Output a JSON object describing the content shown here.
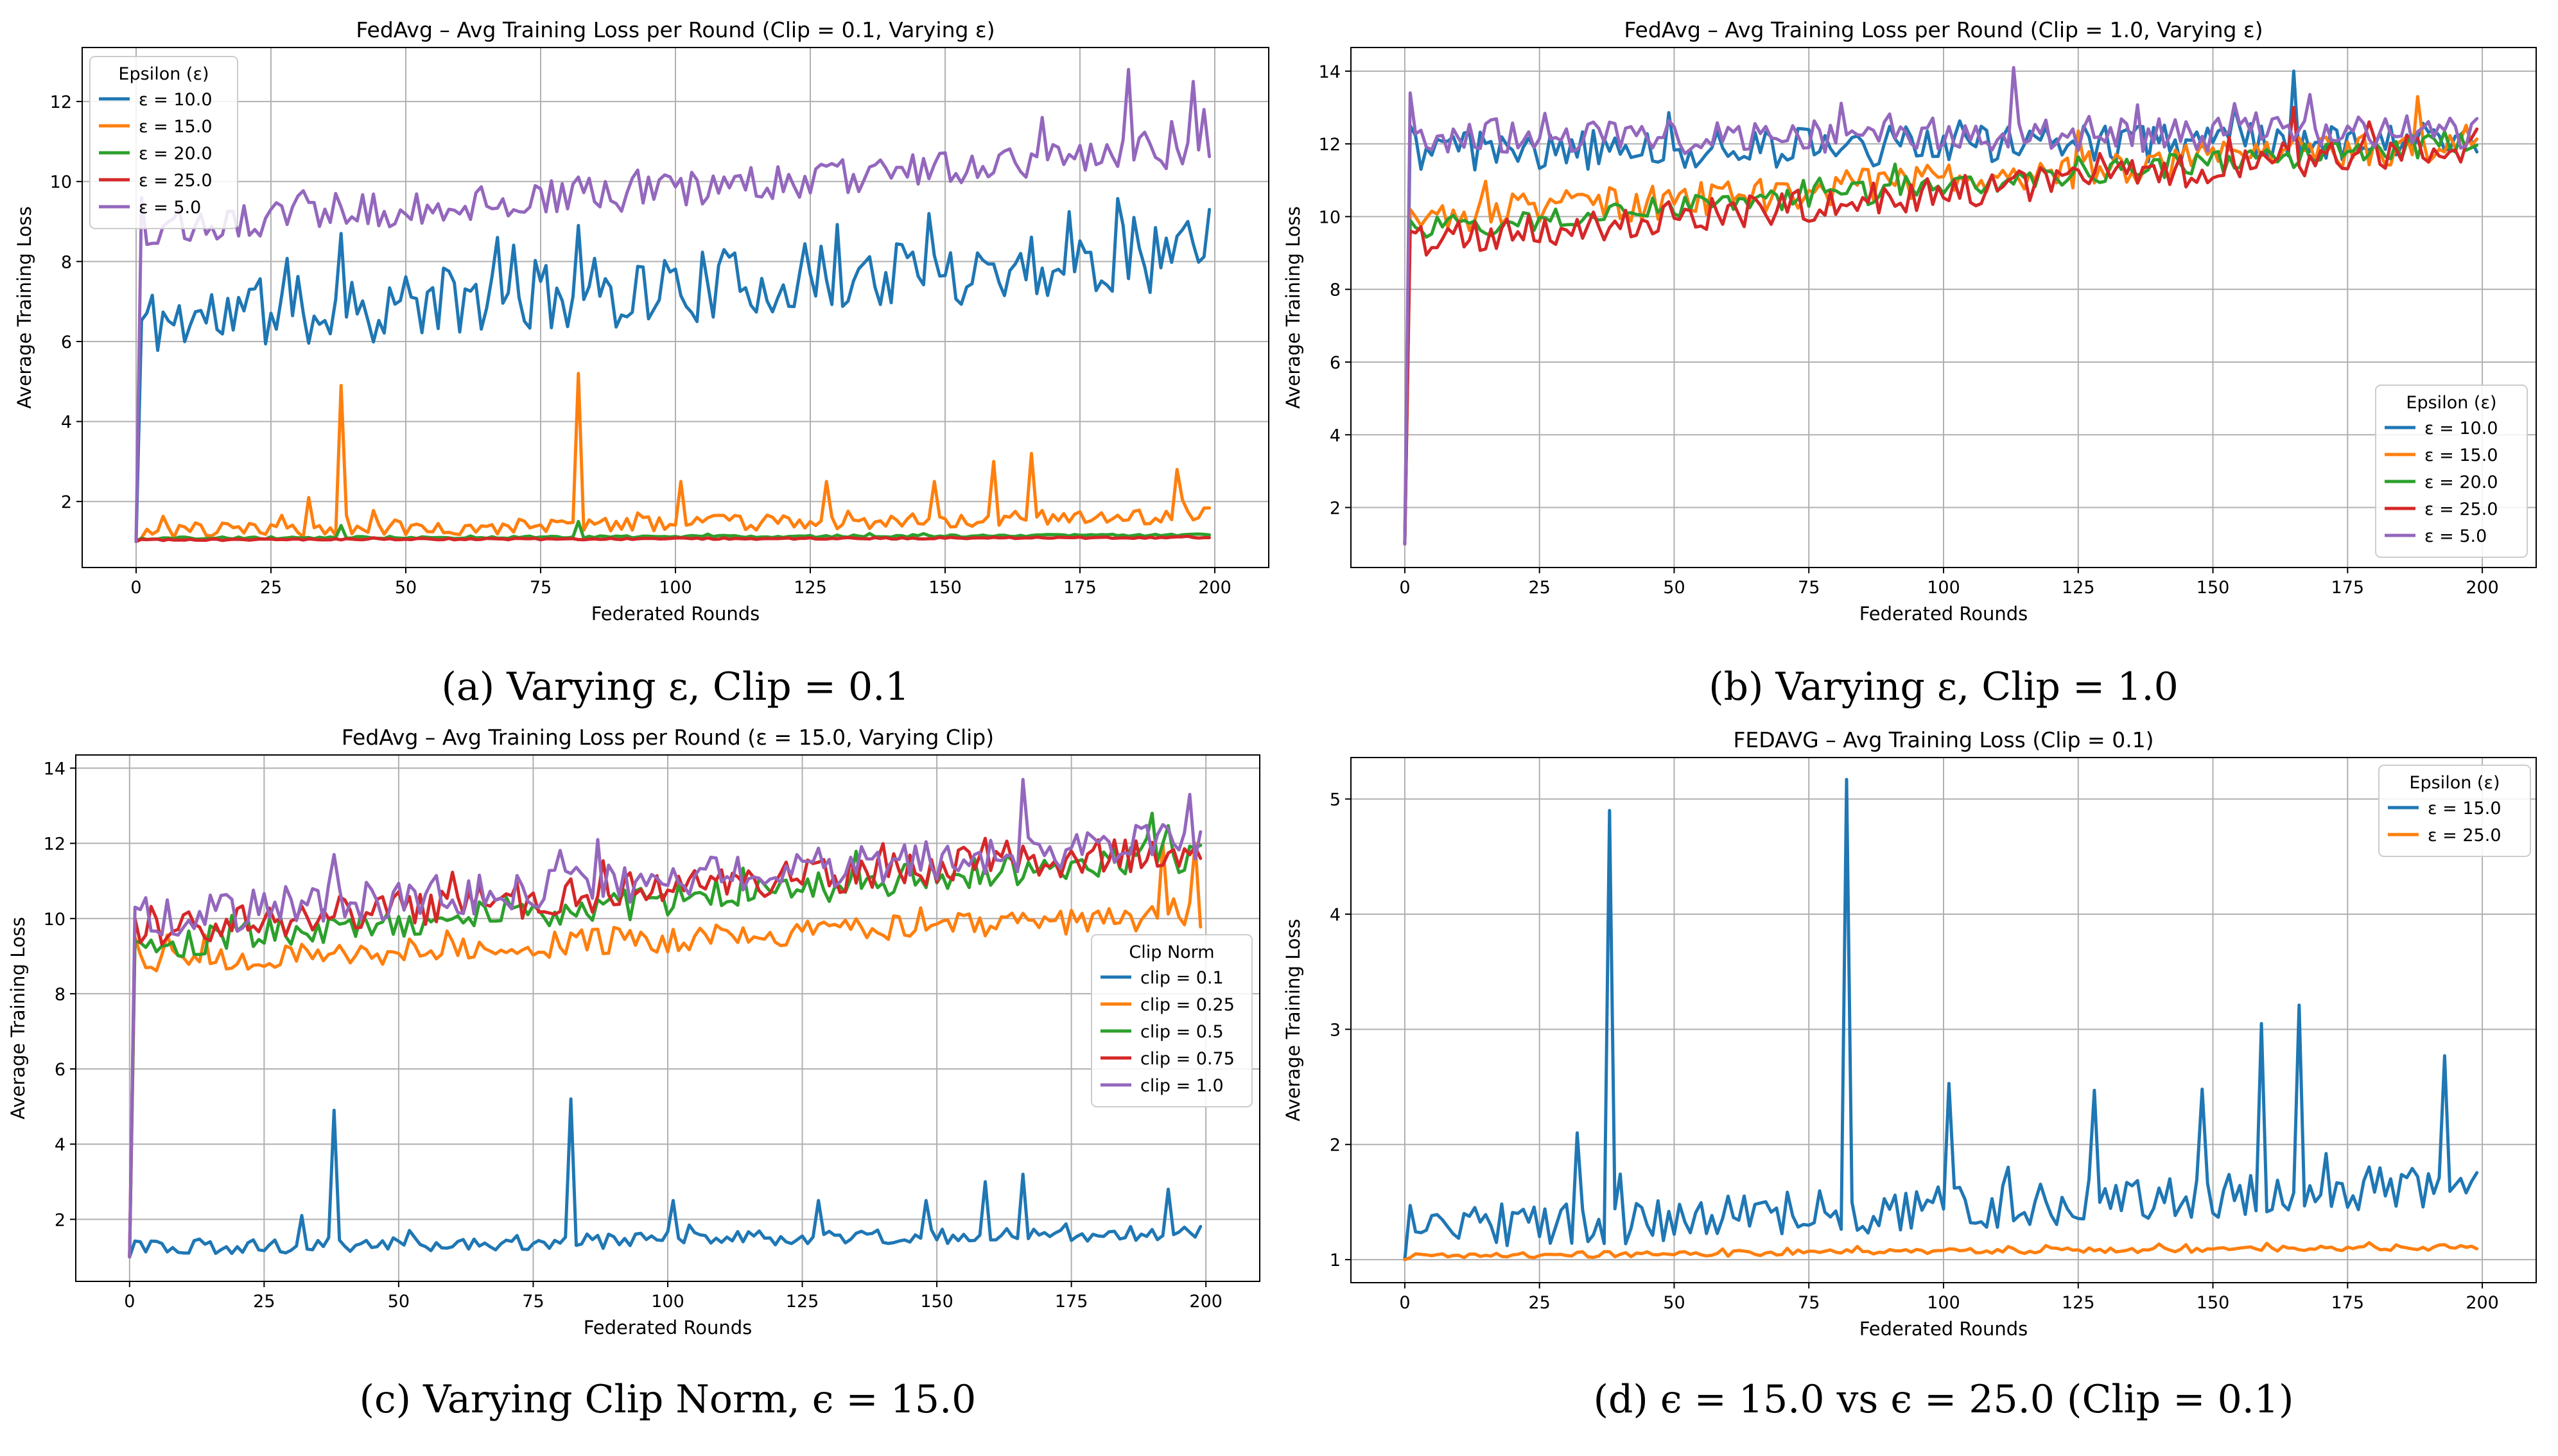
{
  "chart_data": [
    {
      "id": "a",
      "type": "line",
      "title": "FedAvg – Avg Training Loss per Round (Clip = 0.1, Varying ε)",
      "xlabel": "Federated Rounds",
      "ylabel": "Average Training Loss",
      "caption": "(a) Varying ε, Clip = 0.1",
      "xlim": [
        -10,
        210
      ],
      "ylim": [
        0.35,
        13.35
      ],
      "xticks": [
        0,
        25,
        50,
        75,
        100,
        125,
        150,
        175,
        200
      ],
      "yticks": [
        2,
        4,
        6,
        8,
        10,
        12
      ],
      "grid": true,
      "legend_title": "Epsilon (ε)",
      "legend_position": "upper-left",
      "series": [
        {
          "name": "ε = 10.0",
          "color": "#1f77b4",
          "start": 1.0,
          "base": 6.5,
          "slope": 0.0085,
          "noise": 0.9,
          "spikes": [
            [
              38,
              8.7
            ],
            [
              82,
              8.9
            ],
            [
              195,
              9.0
            ],
            [
              199,
              9.3
            ]
          ],
          "seed": 11
        },
        {
          "name": "ε = 15.0",
          "color": "#ff7f0e",
          "start": 1.0,
          "base": 1.25,
          "slope": 0.002,
          "noise": 0.2,
          "spikes": [
            [
              32,
              2.1
            ],
            [
              38,
              4.9
            ],
            [
              82,
              5.2
            ],
            [
              101,
              2.5
            ],
            [
              128,
              2.5
            ],
            [
              148,
              2.5
            ],
            [
              159,
              3.0
            ],
            [
              166,
              3.2
            ],
            [
              193,
              2.8
            ]
          ],
          "seed": 23
        },
        {
          "name": "ε = 20.0",
          "color": "#2ca02c",
          "start": 1.0,
          "base": 1.08,
          "slope": 0.0004,
          "noise": 0.03,
          "spikes": [
            [
              38,
              1.4
            ],
            [
              82,
              1.5
            ]
          ],
          "seed": 37
        },
        {
          "name": "ε = 25.0",
          "color": "#d62728",
          "start": 1.0,
          "base": 1.04,
          "slope": 0.0003,
          "noise": 0.02,
          "spikes": [],
          "seed": 41
        },
        {
          "name": "ε = 5.0",
          "color": "#9467bd",
          "start": 1.0,
          "base": 8.8,
          "slope": 0.01,
          "noise": 0.45,
          "spikes": [
            [
              1,
              9.6
            ],
            [
              168,
              11.6
            ],
            [
              184,
              12.8
            ],
            [
              192,
              11.5
            ],
            [
              196,
              12.5
            ],
            [
              198,
              11.8
            ]
          ],
          "seed": 53
        }
      ]
    },
    {
      "id": "b",
      "type": "line",
      "title": "FedAvg – Avg Training Loss per Round (Clip = 1.0, Varying ε)",
      "xlabel": "Federated Rounds",
      "ylabel": "Average Training Loss",
      "caption": "(b) Varying ε, Clip = 1.0",
      "xlim": [
        -10,
        210
      ],
      "ylim": [
        0.35,
        14.65
      ],
      "xticks": [
        0,
        25,
        50,
        75,
        100,
        125,
        150,
        175,
        200
      ],
      "yticks": [
        2,
        4,
        6,
        8,
        10,
        12,
        14
      ],
      "grid": true,
      "legend_title": "Epsilon (ε)",
      "legend_position": "lower-right",
      "series": [
        {
          "name": "ε = 10.0",
          "color": "#1f77b4",
          "start": 1.0,
          "base": 11.8,
          "slope": 0.0015,
          "noise": 0.55,
          "spikes": [
            [
              1,
              12.5
            ],
            [
              165,
              14.0
            ]
          ],
          "seed": 61
        },
        {
          "name": "ε = 15.0",
          "color": "#ff7f0e",
          "start": 1.0,
          "base": 9.9,
          "slope": 0.011,
          "noise": 0.5,
          "spikes": [
            [
              1,
              10.2
            ],
            [
              188,
              13.3
            ]
          ],
          "seed": 67
        },
        {
          "name": "ε = 20.0",
          "color": "#2ca02c",
          "start": 1.0,
          "base": 9.6,
          "slope": 0.0125,
          "noise": 0.35,
          "spikes": [
            [
              1,
              9.9
            ]
          ],
          "seed": 71
        },
        {
          "name": "ε = 25.0",
          "color": "#d62728",
          "start": 1.0,
          "base": 9.3,
          "slope": 0.0135,
          "noise": 0.45,
          "spikes": [
            [
              1,
              9.6
            ],
            [
              165,
              13.0
            ]
          ],
          "seed": 79
        },
        {
          "name": "ε = 5.0",
          "color": "#9467bd",
          "start": 1.0,
          "base": 12.2,
          "slope": 0.0005,
          "noise": 0.5,
          "spikes": [
            [
              1,
              13.4
            ],
            [
              113,
              14.1
            ]
          ],
          "seed": 83
        }
      ]
    },
    {
      "id": "c",
      "type": "line",
      "title": "FedAvg – Avg Training Loss per Round (ε = 15.0, Varying Clip)",
      "xlabel": "Federated Rounds",
      "ylabel": "Average Training Loss",
      "caption": "(c) Varying Clip Norm, ϵ = 15.0",
      "xlim": [
        -10,
        210
      ],
      "ylim": [
        0.35,
        14.35
      ],
      "xticks": [
        0,
        25,
        50,
        75,
        100,
        125,
        150,
        175,
        200
      ],
      "yticks": [
        2,
        4,
        6,
        8,
        10,
        12,
        14
      ],
      "grid": true,
      "legend_title": "Clip Norm",
      "legend_position": "center-right",
      "series": [
        {
          "name": "clip = 0.1",
          "color": "#1f77b4",
          "start": 1.0,
          "base": 1.25,
          "slope": 0.002,
          "noise": 0.2,
          "spikes": [
            [
              32,
              2.1
            ],
            [
              38,
              4.9
            ],
            [
              82,
              5.2
            ],
            [
              101,
              2.5
            ],
            [
              128,
              2.5
            ],
            [
              148,
              2.5
            ],
            [
              159,
              3.0
            ],
            [
              166,
              3.2
            ],
            [
              193,
              2.8
            ]
          ],
          "seed": 89
        },
        {
          "name": "clip = 0.25",
          "color": "#ff7f0e",
          "start": 1.0,
          "base": 8.8,
          "slope": 0.0065,
          "noise": 0.35,
          "spikes": [
            [
              1,
              9.5
            ],
            [
              192,
              12.0
            ],
            [
              198,
              12.0
            ]
          ],
          "seed": 97
        },
        {
          "name": "clip = 0.5",
          "color": "#2ca02c",
          "start": 1.0,
          "base": 9.3,
          "slope": 0.012,
          "noise": 0.45,
          "spikes": [
            [
              1,
              9.4
            ],
            [
              190,
              12.8
            ]
          ],
          "seed": 101
        },
        {
          "name": "clip = 0.75",
          "color": "#d62728",
          "start": 1.0,
          "base": 9.7,
          "slope": 0.011,
          "noise": 0.5,
          "spikes": [
            [
              1,
              10.0
            ]
          ],
          "seed": 103
        },
        {
          "name": "clip = 1.0",
          "color": "#9467bd",
          "start": 1.0,
          "base": 10.0,
          "slope": 0.0105,
          "noise": 0.55,
          "spikes": [
            [
              1,
              10.3
            ],
            [
              38,
              11.7
            ],
            [
              166,
              13.7
            ],
            [
              197,
              13.3
            ]
          ],
          "seed": 107
        }
      ]
    },
    {
      "id": "d",
      "type": "line",
      "title": "FEDAVG – Avg Training Loss (Clip = 0.1)",
      "xlabel": "Federated Rounds",
      "ylabel": "Average Training Loss",
      "caption": "(d) ϵ = 15.0 vs ϵ = 25.0 (Clip = 0.1)",
      "xlim": [
        -10,
        210
      ],
      "ylim": [
        0.8,
        5.36
      ],
      "xticks": [
        0,
        25,
        50,
        75,
        100,
        125,
        150,
        175,
        200
      ],
      "yticks": [
        1,
        2,
        3,
        4,
        5
      ],
      "grid": true,
      "legend_title": "Epsilon (ε)",
      "legend_position": "upper-right",
      "series": [
        {
          "name": "ε = 15.0",
          "color": "#1f77b4",
          "start": 1.0,
          "base": 1.25,
          "slope": 0.002,
          "noise": 0.2,
          "spikes": [
            [
              1,
              1.47
            ],
            [
              32,
              2.1
            ],
            [
              38,
              4.9
            ],
            [
              82,
              5.17
            ],
            [
              101,
              2.53
            ],
            [
              128,
              2.47
            ],
            [
              148,
              2.48
            ],
            [
              159,
              3.05
            ],
            [
              166,
              3.21
            ],
            [
              193,
              2.77
            ]
          ],
          "seed": 113
        },
        {
          "name": "ε = 25.0",
          "color": "#ff7f0e",
          "start": 1.0,
          "base": 1.03,
          "slope": 0.0004,
          "noise": 0.025,
          "spikes": [
            [
              193,
              1.13
            ]
          ],
          "seed": 127
        }
      ]
    }
  ]
}
